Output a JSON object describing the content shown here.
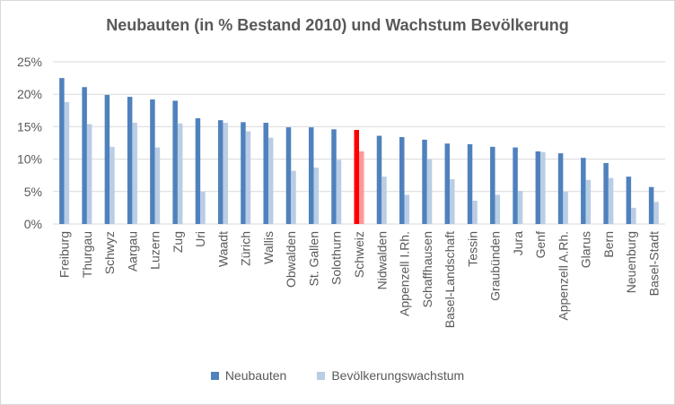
{
  "chart_data": {
    "type": "bar",
    "title": "Neubauten (in % Bestand 2010) und Wachstum Bevölkerung",
    "xlabel": "",
    "ylabel": "",
    "ylim": [
      0,
      25
    ],
    "yticks": [
      0,
      5,
      10,
      15,
      20,
      25
    ],
    "ytick_labels": [
      "0%",
      "5%",
      "10%",
      "15%",
      "20%",
      "25%"
    ],
    "grid": true,
    "legend_position": "bottom",
    "categories": [
      "Freiburg",
      "Thurgau",
      "Schwyz",
      "Aargau",
      "Luzern",
      "Zug",
      "Uri",
      "Waadt",
      "Zürich",
      "Wallis",
      "Obwalden",
      "St. Gallen",
      "Solothurn",
      "Schweiz",
      "Nidwalden",
      "Appenzell I.Rh.",
      "Schaffhausen",
      "Basel-Landschaft",
      "Tessin",
      "Graubünden",
      "Jura",
      "Genf",
      "Appenzell A.Rh.",
      "Glarus",
      "Bern",
      "Neuenburg",
      "Basel-Stadt"
    ],
    "highlight_category": "Schweiz",
    "highlight_colors": [
      "#ff0000",
      "#ff9999"
    ],
    "series": [
      {
        "name": "Neubauten",
        "color": "#4f81bd",
        "values": [
          22.5,
          21.1,
          19.9,
          19.6,
          19.2,
          19.0,
          16.3,
          16.0,
          15.7,
          15.6,
          14.9,
          14.9,
          14.6,
          14.5,
          13.6,
          13.4,
          13.0,
          12.4,
          12.3,
          11.9,
          11.8,
          11.2,
          10.9,
          10.2,
          9.4,
          7.3,
          5.7
        ]
      },
      {
        "name": "Bevölkerungswachstum",
        "color": "#b9cde5",
        "values": [
          18.8,
          15.4,
          11.9,
          15.6,
          11.8,
          15.5,
          5.0,
          15.6,
          14.3,
          13.3,
          8.2,
          8.7,
          9.9,
          11.2,
          7.3,
          4.5,
          10.0,
          6.9,
          3.6,
          4.5,
          5.1,
          11.1,
          5.0,
          6.8,
          7.1,
          2.5,
          3.4
        ]
      }
    ]
  }
}
